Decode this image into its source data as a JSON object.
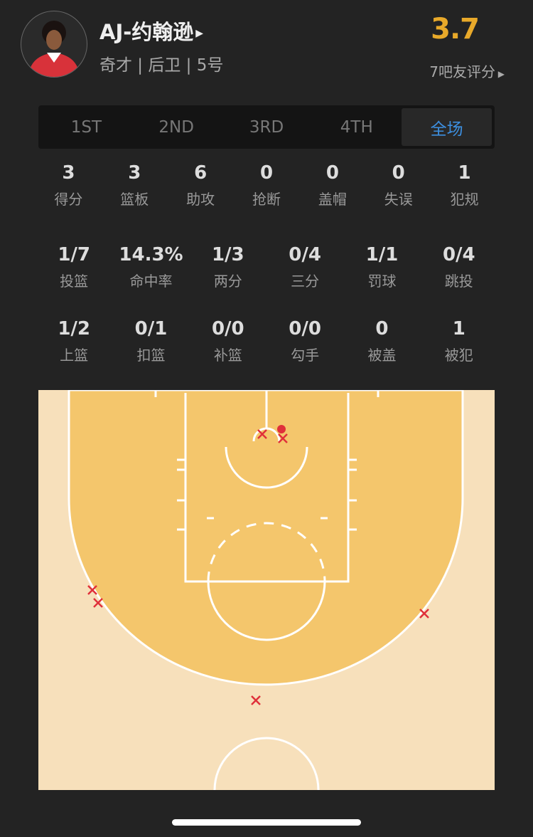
{
  "player": {
    "name": "AJ-约翰逊",
    "info": "奇才 | 后卫 | 5号",
    "avatar": "player-photo"
  },
  "rating": {
    "score": "3.7",
    "label": "7吧友评分"
  },
  "tabs": [
    {
      "label": "1ST"
    },
    {
      "label": "2ND"
    },
    {
      "label": "3RD"
    },
    {
      "label": "4TH"
    },
    {
      "label": "全场",
      "active": true
    }
  ],
  "stats_main": [
    {
      "v": "3",
      "l": "得分"
    },
    {
      "v": "3",
      "l": "篮板"
    },
    {
      "v": "6",
      "l": "助攻"
    },
    {
      "v": "0",
      "l": "抢断"
    },
    {
      "v": "0",
      "l": "盖帽"
    },
    {
      "v": "0",
      "l": "失误"
    },
    {
      "v": "1",
      "l": "犯规"
    }
  ],
  "stats_shooting": [
    {
      "v": "1/7",
      "l": "投篮"
    },
    {
      "v": "14.3%",
      "l": "命中率"
    },
    {
      "v": "1/3",
      "l": "两分"
    },
    {
      "v": "0/4",
      "l": "三分"
    },
    {
      "v": "1/1",
      "l": "罚球"
    },
    {
      "v": "0/4",
      "l": "跳投"
    }
  ],
  "stats_types": [
    {
      "v": "1/2",
      "l": "上篮"
    },
    {
      "v": "0/1",
      "l": "扣篮"
    },
    {
      "v": "0/0",
      "l": "补篮"
    },
    {
      "v": "0/0",
      "l": "勾手"
    },
    {
      "v": "0",
      "l": "被盖"
    },
    {
      "v": "1",
      "l": "被犯"
    }
  ],
  "shot_chart": {
    "made": 1,
    "missed": 6,
    "colors": {
      "shot": "#e0303a",
      "court_outer": "#f7e0bb",
      "court_inner": "#f4c66c",
      "accent": "#e8a92a",
      "tab_active": "#3d8fe0"
    }
  }
}
